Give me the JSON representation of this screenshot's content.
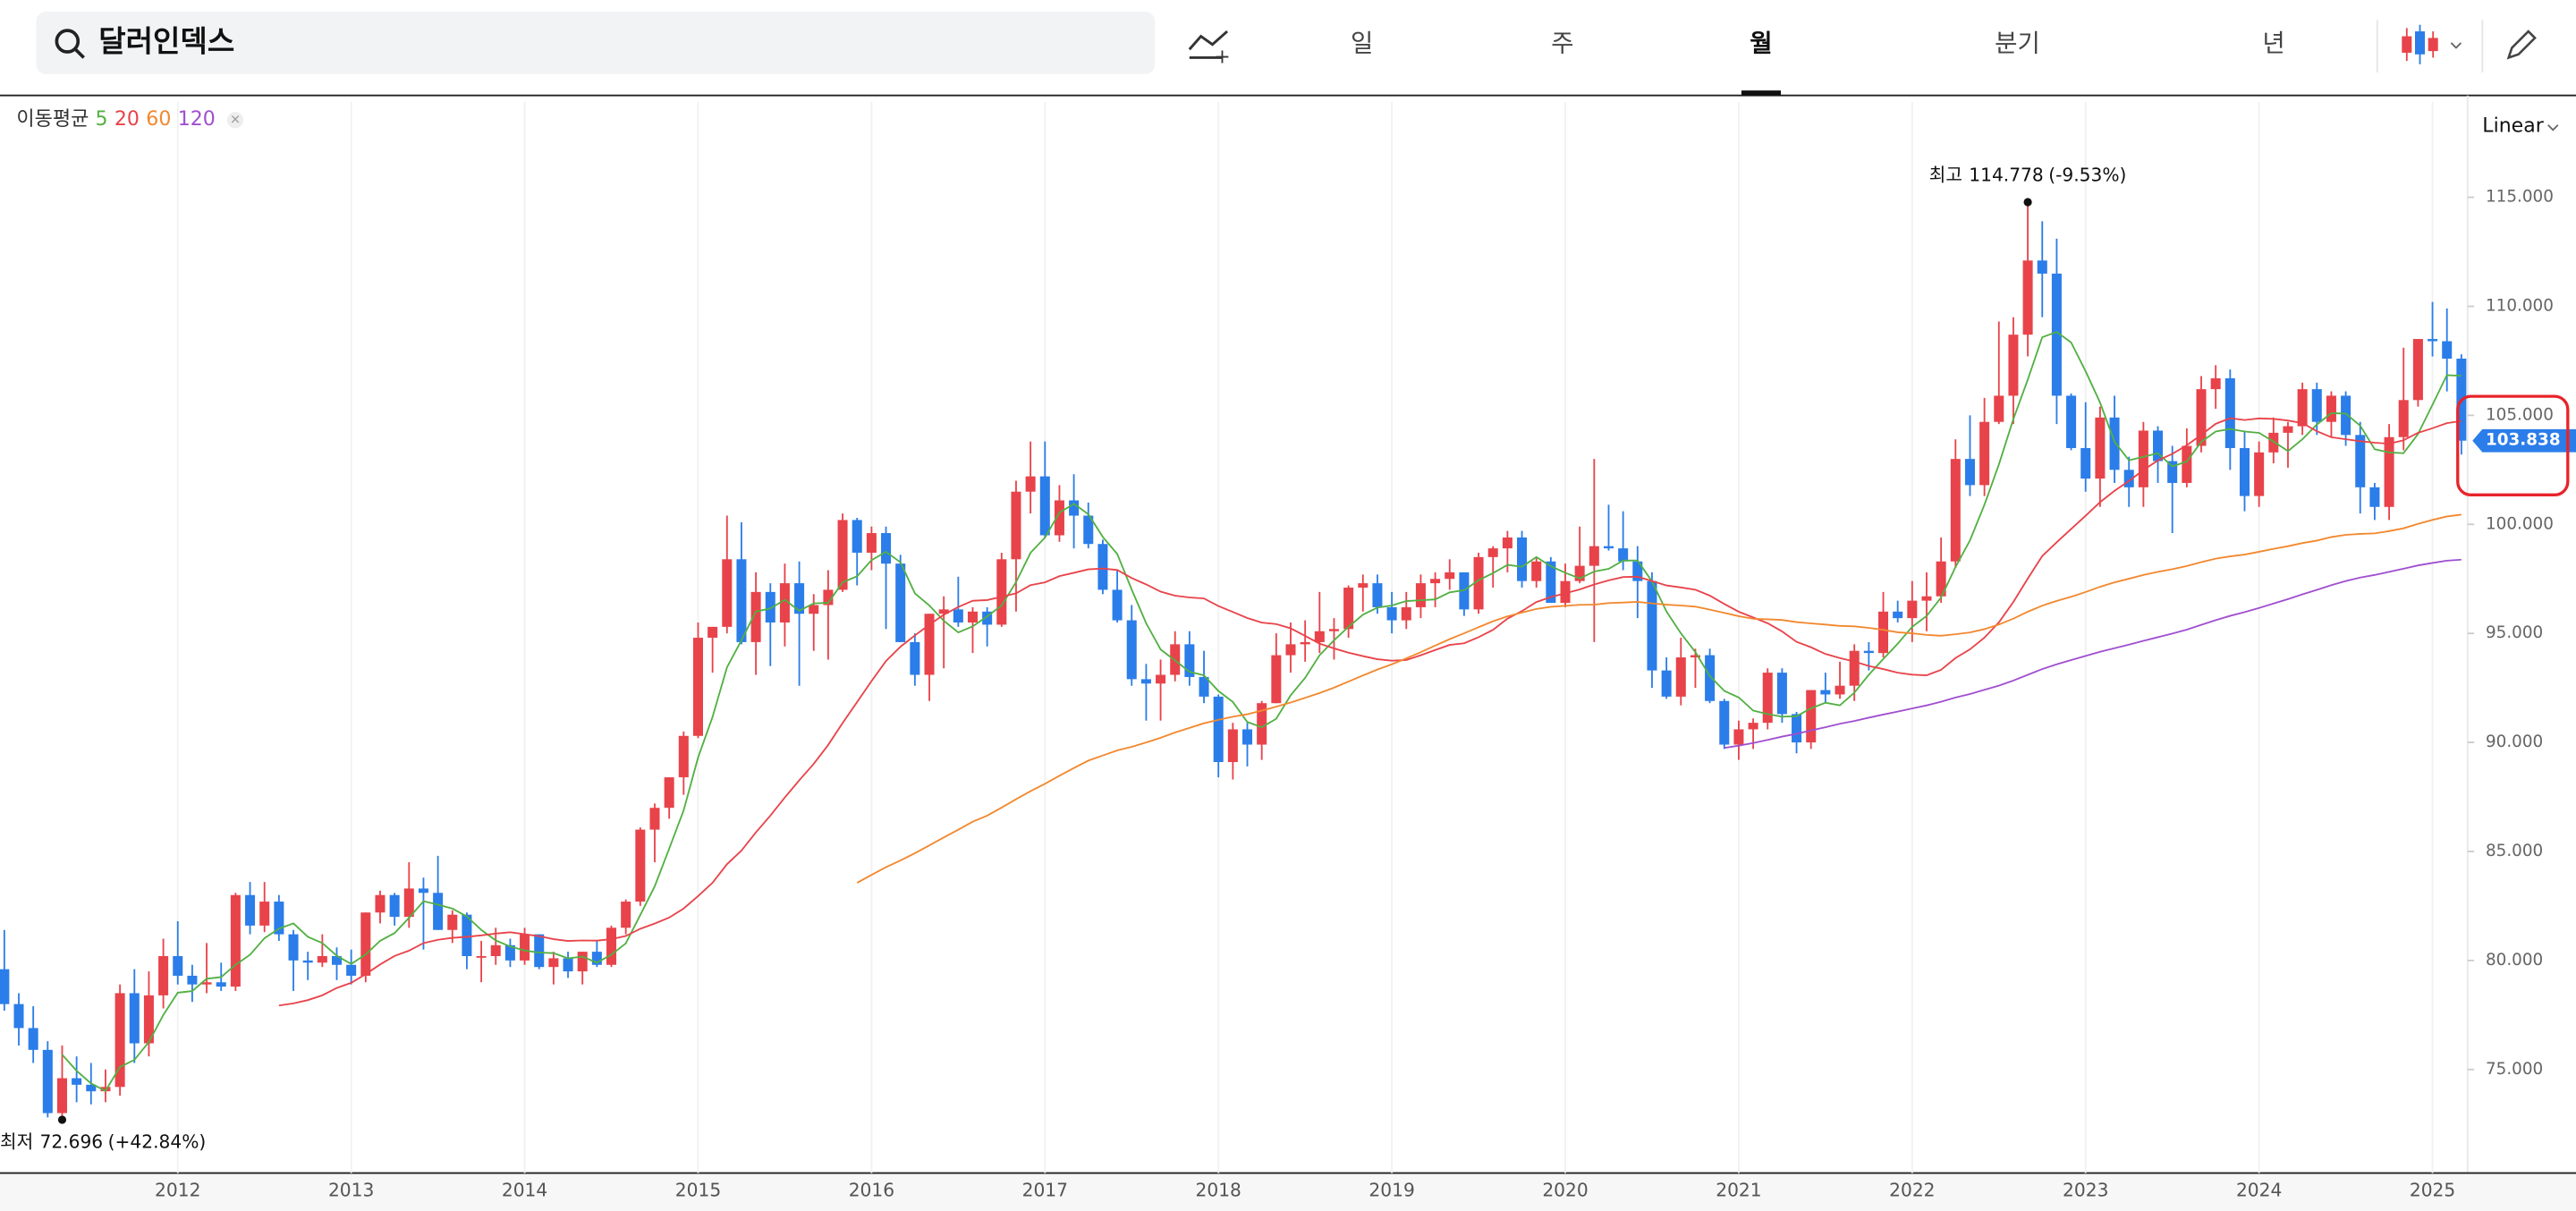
{
  "search": {
    "query": "달러인덱스"
  },
  "tabs": [
    "일",
    "주",
    "월",
    "분기",
    "년"
  ],
  "active_tab_index": 2,
  "scale_mode": "Linear",
  "chart_data": {
    "type": "candlestick",
    "indicator": {
      "label": "이동평균",
      "periods": [
        5,
        20,
        60,
        120
      ],
      "colors": [
        "#52b043",
        "#e8434a",
        "#f2882e",
        "#a04fd0"
      ]
    },
    "up_color": "#e8434a",
    "down_color": "#2b7de9",
    "candles": [
      [
        79.6,
        81.4,
        77.7,
        78.0
      ],
      [
        78.0,
        78.5,
        76.1,
        76.9
      ],
      [
        76.9,
        77.9,
        75.3,
        75.9
      ],
      [
        75.9,
        76.3,
        72.8,
        73.0
      ],
      [
        73.0,
        76.1,
        72.696,
        74.6
      ],
      [
        74.6,
        75.6,
        73.5,
        74.3
      ],
      [
        74.3,
        75.3,
        73.4,
        74.0
      ],
      [
        74.0,
        75.0,
        73.5,
        74.2
      ],
      [
        74.2,
        78.9,
        73.8,
        78.5
      ],
      [
        78.5,
        79.6,
        75.3,
        76.2
      ],
      [
        76.2,
        79.5,
        75.6,
        78.4
      ],
      [
        78.4,
        81.0,
        77.8,
        80.2
      ],
      [
        80.2,
        81.8,
        78.9,
        79.3
      ],
      [
        79.3,
        79.8,
        78.1,
        78.9
      ],
      [
        78.9,
        80.8,
        78.5,
        79.0
      ],
      [
        79.0,
        79.9,
        78.6,
        78.8
      ],
      [
        78.8,
        83.1,
        78.6,
        83.0
      ],
      [
        83.0,
        83.6,
        81.2,
        81.6
      ],
      [
        81.6,
        83.6,
        81.3,
        82.7
      ],
      [
        82.7,
        83.0,
        80.9,
        81.2
      ],
      [
        81.2,
        81.4,
        78.6,
        80.0
      ],
      [
        80.0,
        80.4,
        79.1,
        79.9
      ],
      [
        79.9,
        81.2,
        79.7,
        80.2
      ],
      [
        80.2,
        80.6,
        79.1,
        79.8
      ],
      [
        79.8,
        80.5,
        78.9,
        79.3
      ],
      [
        79.3,
        82.2,
        79.0,
        82.2
      ],
      [
        82.2,
        83.2,
        81.7,
        83.0
      ],
      [
        83.0,
        83.1,
        81.6,
        82.0
      ],
      [
        82.0,
        84.5,
        81.5,
        83.3
      ],
      [
        83.3,
        83.8,
        80.5,
        83.1
      ],
      [
        83.1,
        84.8,
        81.4,
        81.4
      ],
      [
        81.4,
        82.3,
        80.8,
        82.1
      ],
      [
        82.1,
        82.2,
        79.6,
        80.2
      ],
      [
        80.2,
        80.9,
        79.0,
        80.2
      ],
      [
        80.2,
        81.5,
        79.8,
        80.7
      ],
      [
        80.7,
        81.0,
        79.7,
        80.0
      ],
      [
        80.0,
        81.5,
        79.8,
        81.2
      ],
      [
        81.2,
        81.2,
        79.6,
        79.7
      ],
      [
        79.7,
        80.4,
        78.9,
        80.1
      ],
      [
        80.1,
        80.4,
        79.2,
        79.5
      ],
      [
        79.5,
        80.4,
        78.9,
        80.4
      ],
      [
        80.4,
        80.9,
        79.7,
        79.8
      ],
      [
        79.8,
        81.6,
        79.7,
        81.5
      ],
      [
        81.5,
        82.8,
        81.2,
        82.7
      ],
      [
        82.7,
        86.1,
        82.5,
        86.0
      ],
      [
        86.0,
        87.2,
        84.5,
        87.0
      ],
      [
        87.0,
        88.4,
        86.5,
        88.4
      ],
      [
        88.4,
        90.5,
        87.6,
        90.3
      ],
      [
        90.3,
        95.5,
        90.2,
        94.8
      ],
      [
        94.8,
        95.3,
        93.2,
        95.3
      ],
      [
        95.3,
        100.4,
        95.0,
        98.4
      ],
      [
        98.4,
        100.1,
        94.5,
        94.6
      ],
      [
        94.6,
        97.8,
        93.1,
        96.9
      ],
      [
        96.9,
        97.3,
        93.5,
        95.5
      ],
      [
        95.5,
        98.2,
        94.4,
        97.3
      ],
      [
        97.3,
        98.3,
        92.6,
        95.9
      ],
      [
        95.9,
        96.8,
        94.2,
        96.3
      ],
      [
        96.3,
        97.9,
        93.8,
        97.0
      ],
      [
        97.0,
        100.5,
        96.9,
        100.2
      ],
      [
        100.2,
        100.3,
        97.2,
        98.7
      ],
      [
        98.7,
        99.9,
        97.9,
        99.6
      ],
      [
        99.6,
        99.9,
        95.2,
        98.2
      ],
      [
        98.2,
        98.6,
        94.6,
        94.6
      ],
      [
        94.6,
        95.0,
        92.6,
        93.1
      ],
      [
        93.1,
        95.9,
        91.9,
        95.9
      ],
      [
        95.9,
        96.7,
        93.4,
        96.1
      ],
      [
        96.1,
        97.6,
        95.3,
        95.5
      ],
      [
        95.5,
        96.2,
        94.1,
        96.0
      ],
      [
        96.0,
        96.2,
        94.4,
        95.4
      ],
      [
        95.4,
        98.7,
        95.3,
        98.4
      ],
      [
        98.4,
        102.0,
        96.0,
        101.5
      ],
      [
        101.5,
        103.8,
        100.5,
        102.2
      ],
      [
        102.2,
        103.8,
        99.4,
        99.5
      ],
      [
        99.5,
        101.8,
        99.2,
        101.1
      ],
      [
        101.1,
        102.3,
        98.9,
        100.4
      ],
      [
        100.4,
        101.0,
        98.9,
        99.1
      ],
      [
        99.1,
        99.3,
        96.8,
        97.0
      ],
      [
        97.0,
        97.9,
        95.5,
        95.6
      ],
      [
        95.6,
        96.3,
        92.6,
        92.9
      ],
      [
        92.9,
        93.6,
        91.0,
        92.7
      ],
      [
        92.7,
        93.8,
        91.0,
        93.1
      ],
      [
        93.1,
        95.1,
        92.8,
        94.5
      ],
      [
        94.5,
        95.1,
        92.6,
        93.0
      ],
      [
        93.0,
        94.2,
        91.8,
        92.1
      ],
      [
        92.1,
        92.2,
        88.4,
        89.1
      ],
      [
        89.1,
        90.9,
        88.3,
        90.6
      ],
      [
        90.6,
        90.9,
        88.9,
        89.9
      ],
      [
        89.9,
        91.9,
        89.2,
        91.8
      ],
      [
        91.8,
        95.0,
        91.8,
        94.0
      ],
      [
        94.0,
        95.5,
        93.2,
        94.5
      ],
      [
        94.5,
        95.6,
        93.7,
        94.6
      ],
      [
        94.6,
        96.9,
        94.1,
        95.1
      ],
      [
        95.1,
        95.7,
        93.8,
        95.2
      ],
      [
        95.2,
        97.2,
        94.8,
        97.1
      ],
      [
        97.1,
        97.7,
        96.0,
        97.3
      ],
      [
        97.3,
        97.7,
        95.9,
        96.2
      ],
      [
        96.2,
        96.9,
        95.0,
        95.6
      ],
      [
        95.6,
        96.9,
        95.2,
        96.2
      ],
      [
        96.2,
        97.7,
        95.7,
        97.3
      ],
      [
        97.3,
        97.8,
        96.2,
        97.5
      ],
      [
        97.5,
        98.4,
        97.0,
        97.8
      ],
      [
        97.8,
        97.8,
        95.8,
        96.1
      ],
      [
        96.1,
        98.7,
        95.9,
        98.5
      ],
      [
        98.5,
        99.0,
        97.1,
        98.9
      ],
      [
        98.9,
        99.7,
        97.8,
        99.4
      ],
      [
        99.4,
        99.7,
        97.1,
        97.4
      ],
      [
        97.4,
        98.5,
        97.1,
        98.3
      ],
      [
        98.3,
        98.5,
        96.4,
        96.4
      ],
      [
        96.4,
        98.2,
        96.2,
        97.4
      ],
      [
        97.4,
        99.9,
        97.3,
        98.1
      ],
      [
        98.1,
        103.0,
        94.6,
        99.0
      ],
      [
        99.0,
        100.9,
        98.8,
        98.9
      ],
      [
        98.9,
        100.6,
        97.9,
        98.3
      ],
      [
        98.3,
        99.0,
        95.7,
        97.4
      ],
      [
        97.4,
        97.8,
        92.5,
        93.3
      ],
      [
        93.3,
        93.9,
        92.0,
        92.1
      ],
      [
        92.1,
        94.8,
        91.7,
        93.9
      ],
      [
        93.9,
        94.3,
        92.5,
        94.0
      ],
      [
        94.0,
        94.3,
        91.8,
        91.9
      ],
      [
        91.9,
        92.0,
        89.7,
        89.9
      ],
      [
        89.9,
        91.0,
        89.2,
        90.6
      ],
      [
        90.6,
        91.1,
        89.7,
        90.9
      ],
      [
        90.9,
        93.4,
        90.6,
        93.2
      ],
      [
        93.2,
        93.4,
        90.9,
        91.3
      ],
      [
        91.3,
        91.4,
        89.5,
        90.0
      ],
      [
        90.0,
        92.4,
        89.7,
        92.4
      ],
      [
        92.4,
        93.2,
        91.8,
        92.2
      ],
      [
        92.2,
        93.7,
        92.0,
        92.6
      ],
      [
        92.6,
        94.5,
        91.9,
        94.2
      ],
      [
        94.2,
        94.6,
        93.3,
        94.1
      ],
      [
        94.1,
        96.9,
        93.9,
        96.0
      ],
      [
        96.0,
        96.5,
        95.5,
        95.7
      ],
      [
        95.7,
        97.4,
        94.6,
        96.5
      ],
      [
        96.5,
        97.8,
        95.1,
        96.7
      ],
      [
        96.7,
        99.4,
        96.4,
        98.3
      ],
      [
        98.3,
        103.9,
        98.0,
        103.0
      ],
      [
        103.0,
        105.0,
        101.3,
        101.8
      ],
      [
        101.8,
        105.8,
        101.3,
        104.7
      ],
      [
        104.7,
        109.3,
        104.6,
        105.9
      ],
      [
        105.9,
        109.5,
        104.6,
        108.7
      ],
      [
        108.7,
        114.778,
        107.7,
        112.1
      ],
      [
        112.1,
        113.9,
        109.5,
        111.5
      ],
      [
        111.5,
        113.1,
        104.6,
        105.9
      ],
      [
        105.9,
        106.0,
        103.4,
        103.5
      ],
      [
        103.5,
        105.6,
        101.5,
        102.1
      ],
      [
        102.1,
        105.4,
        100.8,
        104.9
      ],
      [
        104.9,
        105.9,
        101.9,
        102.5
      ],
      [
        102.5,
        103.1,
        100.8,
        101.7
      ],
      [
        101.7,
        104.7,
        100.8,
        104.3
      ],
      [
        104.3,
        104.5,
        101.9,
        102.9
      ],
      [
        102.9,
        103.6,
        99.6,
        101.9
      ],
      [
        101.9,
        104.4,
        101.7,
        103.6
      ],
      [
        103.6,
        106.8,
        103.3,
        106.2
      ],
      [
        106.2,
        107.3,
        105.3,
        106.7
      ],
      [
        106.7,
        107.1,
        102.5,
        103.5
      ],
      [
        103.5,
        104.3,
        100.6,
        101.3
      ],
      [
        101.3,
        103.8,
        100.8,
        103.3
      ],
      [
        103.3,
        104.9,
        102.8,
        104.2
      ],
      [
        104.2,
        104.7,
        102.6,
        104.5
      ],
      [
        104.5,
        106.5,
        104.1,
        106.2
      ],
      [
        106.2,
        106.5,
        104.1,
        104.7
      ],
      [
        104.7,
        106.1,
        104.0,
        105.9
      ],
      [
        105.9,
        106.1,
        103.6,
        104.1
      ],
      [
        104.1,
        104.7,
        100.5,
        101.7
      ],
      [
        101.7,
        101.9,
        100.2,
        100.8
      ],
      [
        100.8,
        104.6,
        100.2,
        104.0
      ],
      [
        104.0,
        108.1,
        103.4,
        105.7
      ],
      [
        105.7,
        108.5,
        105.4,
        108.5
      ],
      [
        108.5,
        110.2,
        107.7,
        108.4
      ],
      [
        108.4,
        109.9,
        106.1,
        107.6
      ],
      [
        107.6,
        107.8,
        103.2,
        103.838
      ]
    ],
    "xlim": [
      -0.3,
      170.2
    ],
    "xticks": [
      {
        "value": 12,
        "label": "2012"
      },
      {
        "value": 24,
        "label": "2013"
      },
      {
        "value": 36,
        "label": "2014"
      },
      {
        "value": 48,
        "label": "2015"
      },
      {
        "value": 60,
        "label": "2016"
      },
      {
        "value": 72,
        "label": "2017"
      },
      {
        "value": 84,
        "label": "2018"
      },
      {
        "value": 96,
        "label": "2019"
      },
      {
        "value": 108,
        "label": "2020"
      },
      {
        "value": 120,
        "label": "2021"
      },
      {
        "value": 132,
        "label": "2022"
      },
      {
        "value": 144,
        "label": "2023"
      },
      {
        "value": 156,
        "label": "2024"
      },
      {
        "value": 168,
        "label": "2025"
      }
    ],
    "ylim": [
      70.25,
      119.37
    ],
    "yticks": [
      {
        "value": 75,
        "label": "75.000"
      },
      {
        "value": 80,
        "label": "80.000"
      },
      {
        "value": 85,
        "label": "85.000"
      },
      {
        "value": 90,
        "label": "90.000"
      },
      {
        "value": 95,
        "label": "95.000"
      },
      {
        "value": 100,
        "label": "100.000"
      },
      {
        "value": 105,
        "label": "105.000"
      },
      {
        "value": 110,
        "label": "110.000"
      },
      {
        "value": 115,
        "label": "115.000"
      }
    ],
    "annotations": {
      "high": {
        "label": "최고",
        "value": 114.778,
        "change": "(-9.53%)"
      },
      "low": {
        "label": "최저",
        "value": 72.696,
        "change": "(+42.84%)"
      }
    }
  }
}
